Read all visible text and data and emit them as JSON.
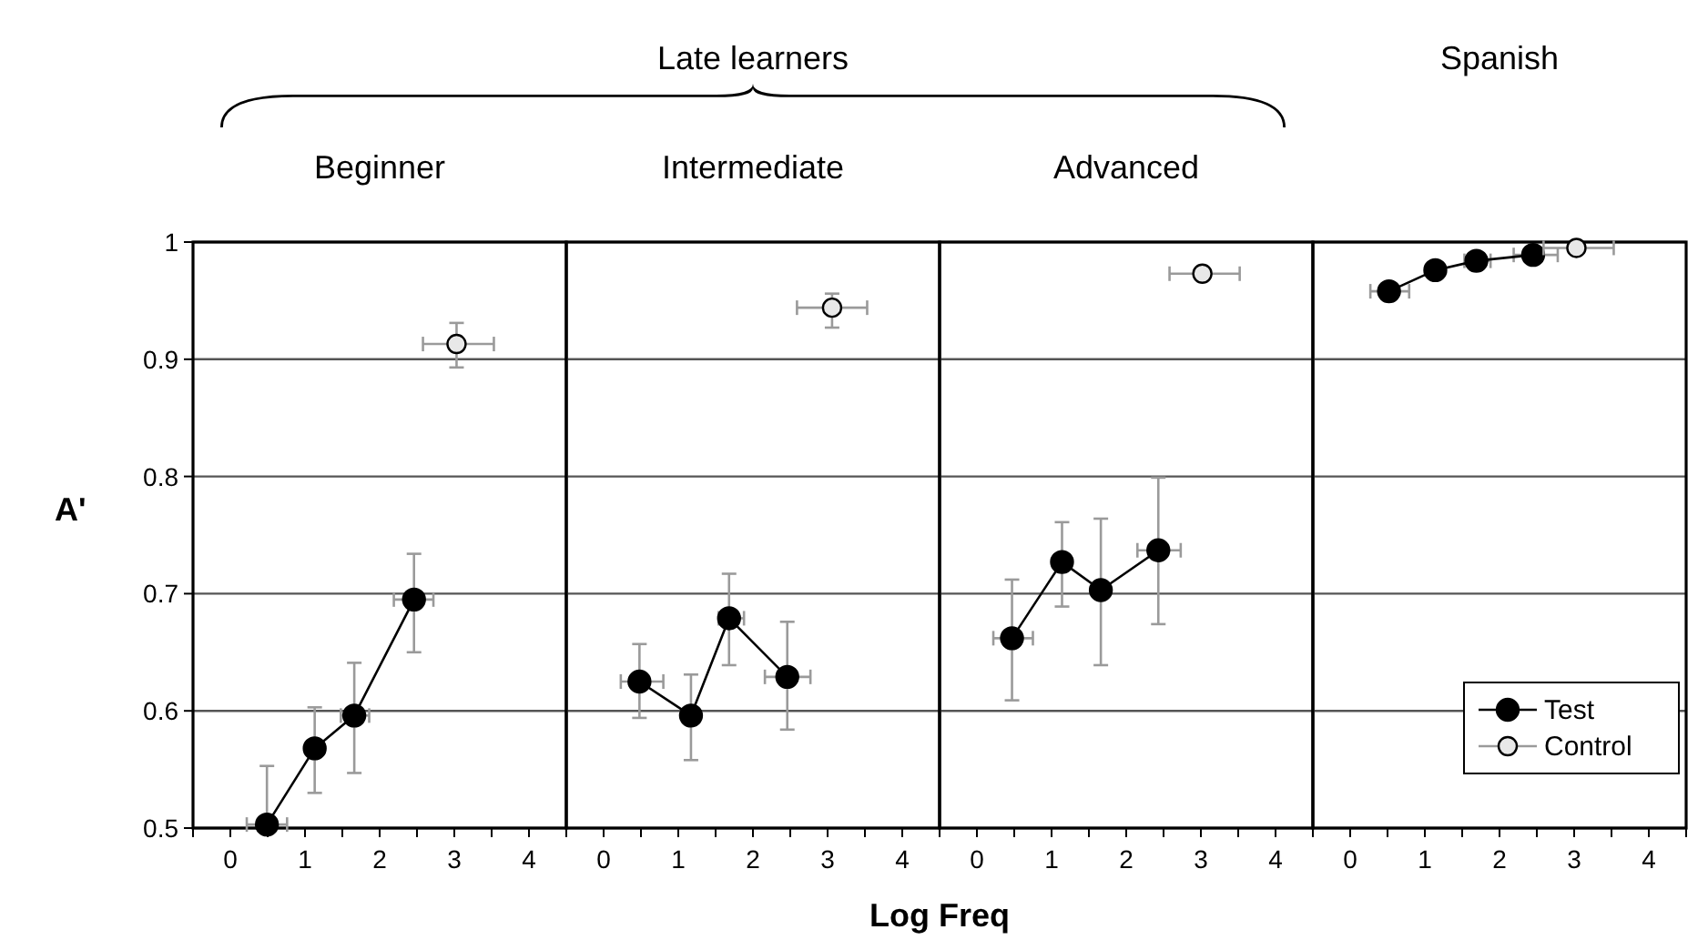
{
  "chart_data": [
    {
      "type": "line",
      "title": "Beginner",
      "ylabel": "A'",
      "annotations": [
        "Late learners"
      ],
      "xlim": [
        -0.5,
        4.5
      ],
      "xticks": [
        {
          "value": -0.5,
          "label": null
        },
        0,
        {
          "value": 0.5,
          "label": null
        },
        1,
        {
          "value": 1.5,
          "label": null
        },
        2,
        {
          "value": 2.5,
          "label": null
        },
        3,
        {
          "value": 3.5,
          "label": null
        },
        4,
        {
          "value": 4.5,
          "label": null
        }
      ],
      "ylim": [
        0.5,
        1
      ],
      "yticks": [
        0.5,
        0.6,
        0.7,
        0.8,
        0.9,
        1
      ],
      "grid": "y",
      "marker": "circle",
      "series": [
        {
          "type": "line",
          "color": "#000000",
          "x": [
            0.49,
            1.13,
            1.66,
            2.46
          ],
          "values": [
            0.503,
            0.568,
            0.596,
            0.695
          ],
          "errors": [
            [
              0.503,
              0.553
            ],
            [
              0.53,
              0.603
            ],
            [
              0.547,
              0.641
            ],
            [
              0.65,
              0.734
            ]
          ],
          "xerrors": [
            [
              0.22,
              0.76
            ],
            null,
            [
              1.48,
              1.86
            ],
            [
              2.19,
              2.72
            ]
          ]
        },
        {
          "type": "scatter",
          "color": "#000000",
          "x": [
            3.03
          ],
          "values": [
            0.913
          ],
          "errors": [
            [
              0.893,
              0.931
            ]
          ],
          "xerrors": [
            [
              2.58,
              3.53
            ]
          ]
        }
      ]
    },
    {
      "type": "line",
      "title": "Intermediate",
      "xlabel": "Log Freq",
      "tick_labels": "x",
      "xlim": [
        -0.5,
        4.5
      ],
      "xticks": [
        {
          "value": -0.5,
          "label": null
        },
        0,
        {
          "value": 0.5,
          "label": null
        },
        1,
        {
          "value": 1.5,
          "label": null
        },
        2,
        {
          "value": 2.5,
          "label": null
        },
        3,
        {
          "value": 3.5,
          "label": null
        },
        4,
        {
          "value": 4.5,
          "label": null
        }
      ],
      "ylim": [
        0.5,
        1
      ],
      "yticks": [
        0.5,
        0.6,
        0.7,
        0.8,
        0.9,
        1
      ],
      "grid": "y",
      "marker": "circle",
      "series": [
        {
          "type": "line",
          "color": "#000000",
          "x": [
            0.48,
            1.17,
            1.68,
            2.46
          ],
          "values": [
            0.625,
            0.596,
            0.679,
            0.629
          ],
          "errors": [
            [
              0.594,
              0.657
            ],
            [
              0.558,
              0.631
            ],
            [
              0.639,
              0.717
            ],
            [
              0.584,
              0.676
            ]
          ],
          "xerrors": [
            [
              0.23,
              0.8
            ],
            null,
            [
              1.54,
              1.88
            ],
            [
              2.16,
              2.77
            ]
          ]
        },
        {
          "type": "scatter",
          "color": "#000000",
          "x": [
            3.06
          ],
          "values": [
            0.944
          ],
          "errors": [
            [
              0.927,
              0.956
            ]
          ],
          "xerrors": [
            [
              2.59,
              3.53
            ]
          ]
        }
      ]
    },
    {
      "type": "line",
      "title": "Advanced",
      "tick_labels": "x",
      "xlim": [
        -0.5,
        4.5
      ],
      "xticks": [
        {
          "value": -0.5,
          "label": null
        },
        0,
        {
          "value": 0.5,
          "label": null
        },
        1,
        {
          "value": 1.5,
          "label": null
        },
        2,
        {
          "value": 2.5,
          "label": null
        },
        3,
        {
          "value": 3.5,
          "label": null
        },
        4,
        {
          "value": 4.5,
          "label": null
        }
      ],
      "ylim": [
        0.5,
        1
      ],
      "yticks": [
        0.5,
        0.6,
        0.7,
        0.8,
        0.9,
        1
      ],
      "grid": "y",
      "marker": "circle",
      "series": [
        {
          "type": "line",
          "color": "#000000",
          "x": [
            0.47,
            1.14,
            1.66,
            2.43
          ],
          "values": [
            0.662,
            0.727,
            0.703,
            0.737
          ],
          "errors": [
            [
              0.609,
              0.712
            ],
            [
              0.689,
              0.761
            ],
            [
              0.639,
              0.764
            ],
            [
              0.674,
              0.799
            ]
          ],
          "xerrors": [
            [
              0.22,
              0.75
            ],
            null,
            null,
            [
              2.15,
              2.73
            ]
          ]
        },
        {
          "type": "scatter",
          "color": "#000000",
          "x": [
            3.02
          ],
          "values": [
            0.973
          ],
          "xerrors": [
            [
              2.58,
              3.52
            ]
          ]
        }
      ]
    },
    {
      "type": "line",
      "title": "Spanish",
      "tick_labels": "x",
      "legend": "bottom right",
      "xlim": [
        -0.5,
        4.5
      ],
      "xticks": [
        {
          "value": -0.5,
          "label": null
        },
        0,
        {
          "value": 0.5,
          "label": null
        },
        1,
        {
          "value": 1.5,
          "label": null
        },
        2,
        {
          "value": 2.5,
          "label": null
        },
        3,
        {
          "value": 3.5,
          "label": null
        },
        4,
        {
          "value": 4.5,
          "label": null
        }
      ],
      "ylim": [
        0.5,
        1
      ],
      "yticks": [
        0.5,
        0.6,
        0.7,
        0.8,
        0.9,
        1
      ],
      "grid": "y",
      "marker": "circle",
      "series": [
        {
          "type": "line",
          "name": "Test",
          "color": "#000000",
          "x": [
            0.52,
            1.14,
            1.69,
            2.45
          ],
          "values": [
            0.958,
            0.976,
            0.984,
            0.989
          ],
          "xerrors": [
            [
              0.27,
              0.79
            ],
            null,
            [
              1.53,
              1.88
            ],
            [
              2.19,
              2.78
            ]
          ]
        },
        {
          "type": "scatter",
          "name": "Control",
          "color": "#000000",
          "x": [
            3.03
          ],
          "values": [
            0.995
          ],
          "xerrors": [
            [
              2.59,
              3.53
            ]
          ]
        }
      ]
    }
  ]
}
